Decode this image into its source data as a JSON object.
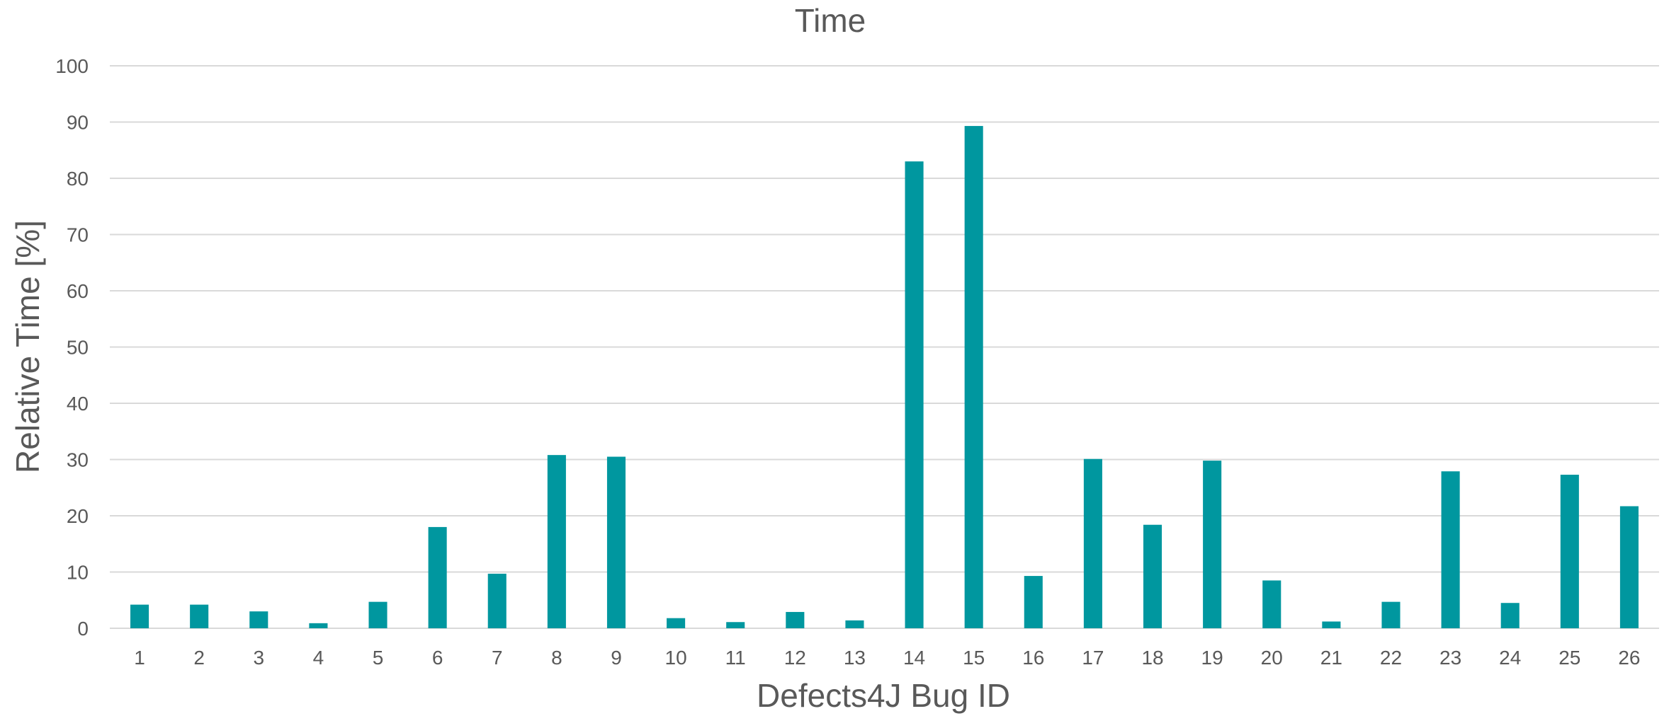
{
  "chart_data": {
    "type": "bar",
    "title": "Time",
    "xlabel": "Defects4J Bug ID",
    "ylabel": "Relative Time [%]",
    "ylim": [
      0,
      100
    ],
    "ytick_step": 10,
    "grid": true,
    "legend": "none",
    "bar_color": "#00979f",
    "categories": [
      "1",
      "2",
      "3",
      "4",
      "5",
      "6",
      "7",
      "8",
      "9",
      "10",
      "11",
      "12",
      "13",
      "14",
      "15",
      "16",
      "17",
      "18",
      "19",
      "20",
      "21",
      "22",
      "23",
      "24",
      "25",
      "26"
    ],
    "values": [
      4.2,
      4.2,
      3.0,
      0.9,
      4.7,
      18.0,
      9.7,
      30.8,
      30.5,
      1.8,
      1.1,
      2.9,
      1.4,
      83.0,
      89.3,
      9.3,
      30.1,
      18.4,
      29.8,
      8.5,
      1.2,
      4.7,
      27.9,
      4.5,
      27.3,
      21.7
    ]
  }
}
